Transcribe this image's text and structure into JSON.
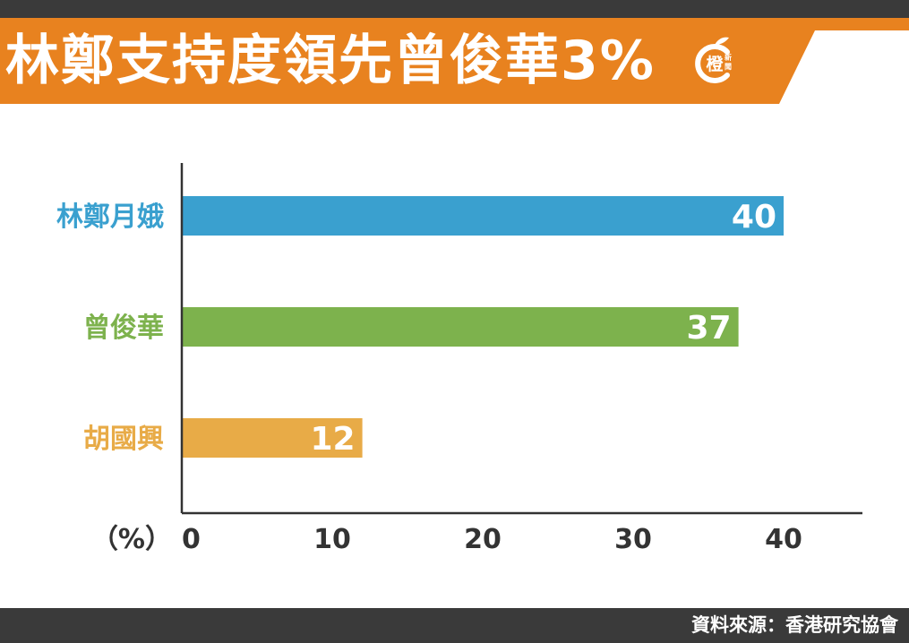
{
  "header": {
    "title": "林鄭支持度領先曾俊華3%",
    "logo_text": "橙",
    "logo_subtext": "新聞"
  },
  "colors": {
    "banner": "#e8821f",
    "dark": "#3a3a3a",
    "axis": "#333333"
  },
  "chart_data": {
    "type": "bar",
    "orientation": "horizontal",
    "categories": [
      "林鄭月娥",
      "曾俊華",
      "胡國興"
    ],
    "values": [
      40,
      37,
      12
    ],
    "colors": [
      "#3aa0cf",
      "#7db24d",
      "#e8ab47"
    ],
    "xlabel": "（%）",
    "xticks": [
      0,
      10,
      20,
      30,
      40
    ],
    "xlim": [
      0,
      45
    ],
    "grid": false
  },
  "footer": {
    "source": "資料來源：香港研究協會"
  }
}
